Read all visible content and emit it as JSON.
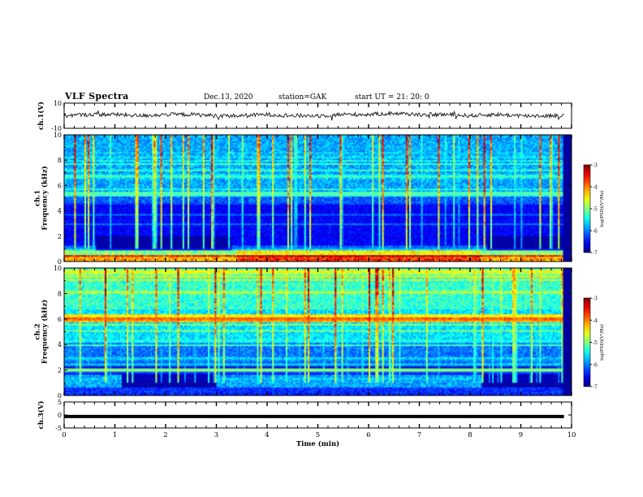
{
  "header": {
    "title": "VLF Spectra",
    "date": "Dec.13, 2020",
    "station": "station=GAK",
    "start": "start  UT  =   21: 20: 0"
  },
  "chart_data": [
    {
      "type": "line",
      "name": "ch1-waveform",
      "ylabel": "ch.1(V)",
      "ylim": [
        -10,
        10
      ],
      "yticks": [
        "10",
        "-10"
      ],
      "xlim": [
        0,
        10
      ],
      "x": [
        0,
        0.5,
        1,
        1.5,
        2,
        2.5,
        3,
        3.5,
        4,
        4.5,
        5,
        5.5,
        6,
        6.5,
        7,
        7.5,
        8,
        8.5,
        9,
        9.5,
        9.85
      ],
      "y": [
        0,
        1,
        1,
        0,
        1,
        1,
        0,
        0,
        1,
        0,
        0,
        1,
        1,
        2,
        1,
        1,
        0,
        1,
        0,
        0,
        0
      ]
    },
    {
      "type": "heatmap",
      "name": "ch1-spectrogram",
      "ylabel": "ch.1\nFrequency (kHz)",
      "ylim": [
        0,
        10
      ],
      "yticks": [
        "0",
        "2",
        "4",
        "6",
        "8",
        "10"
      ],
      "xlim": [
        0,
        10
      ],
      "colorbar": {
        "label": "log(PSD)(V²/Hz)",
        "range": [
          -7,
          -3
        ],
        "ticks": [
          "-3",
          "-4",
          "-5",
          "-6",
          "-7"
        ]
      }
    },
    {
      "type": "heatmap",
      "name": "ch2-spectrogram",
      "ylabel": "ch.2\nFrequency (kHz)",
      "ylim": [
        0,
        10
      ],
      "yticks": [
        "0",
        "2",
        "4",
        "6",
        "8",
        "10"
      ],
      "xlim": [
        0,
        10
      ],
      "colorbar": {
        "label": "log(PSD)(V²/Hz)",
        "range": [
          -7,
          -3
        ],
        "ticks": [
          "-3",
          "-4",
          "-5",
          "-6",
          "-7"
        ]
      }
    },
    {
      "type": "line",
      "name": "ch3-signal",
      "ylabel": "ch.3(V)",
      "ylim": [
        -5,
        5
      ],
      "yticks": [
        "5",
        "0",
        "-5"
      ],
      "xlim": [
        0,
        10
      ],
      "x": [
        0,
        9.85
      ],
      "y": [
        -0.6,
        -0.6
      ]
    }
  ],
  "xaxis": {
    "label": "Time (min)",
    "ticks": [
      "0",
      "1",
      "2",
      "3",
      "4",
      "5",
      "6",
      "7",
      "8",
      "9",
      "10"
    ]
  },
  "colors": {
    "spectro_bg": "#00007a",
    "trace": "#000000"
  }
}
